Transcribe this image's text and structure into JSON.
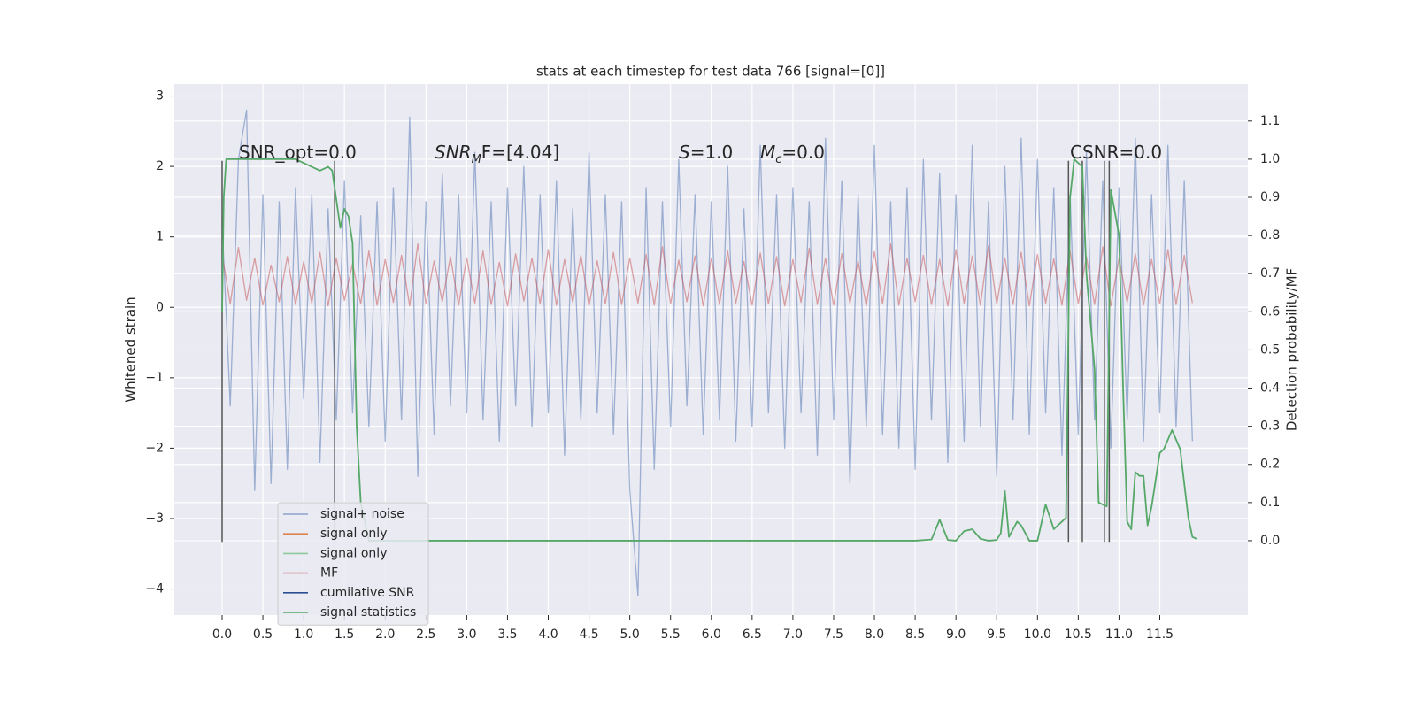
{
  "chart_data": {
    "type": "line",
    "title": "stats at each timestep for test data 766 [signal=[0]]",
    "ylabel": "Whitened strain",
    "y2label": "Detection probability/MF",
    "xlim": [
      -0.586,
      12.58
    ],
    "ylim": [
      -4.37,
      3.17
    ],
    "y2lim": [
      -0.195,
      1.197
    ],
    "xticks": [
      {
        "value": 0,
        "label": "0.0"
      },
      0.5,
      {
        "value": 1,
        "label": "1.0"
      },
      1.5,
      {
        "value": 2,
        "label": "2.0"
      },
      2.5,
      {
        "value": 3,
        "label": "3.0"
      },
      3.5,
      {
        "value": 4,
        "label": "4.0"
      },
      4.5,
      {
        "value": 5,
        "label": "5.0"
      },
      5.5,
      {
        "value": 6,
        "label": "6.0"
      },
      6.5,
      {
        "value": 7,
        "label": "7.0"
      },
      7.5,
      {
        "value": 8,
        "label": "8.0"
      },
      8.5,
      {
        "value": 9,
        "label": "9.0"
      },
      9.5,
      {
        "value": 10,
        "label": "10.0"
      },
      10.5,
      {
        "value": 11,
        "label": "11.0"
      },
      11.5
    ],
    "yticks": [
      3,
      2,
      1,
      0,
      {
        "value": -1,
        "label": "−1"
      },
      {
        "value": -2,
        "label": "−2"
      },
      {
        "value": -3,
        "label": "−3"
      },
      {
        "value": -4,
        "label": "−4"
      }
    ],
    "y2ticks": [
      {
        "value": 0,
        "label": "0.0"
      },
      0.1,
      0.2,
      0.3,
      0.4,
      0.5,
      0.6,
      0.7,
      0.8,
      0.9,
      {
        "value": 1,
        "label": "1.0"
      },
      1.1
    ],
    "grid": true,
    "x": [
      0.0,
      0.1,
      0.2,
      0.3,
      0.4,
      0.5,
      0.6,
      0.7,
      0.8,
      0.9,
      1.0,
      1.1,
      1.2,
      1.3,
      1.4,
      1.5,
      1.6,
      1.7,
      1.8,
      1.9,
      2.0,
      2.1,
      2.2,
      2.3,
      2.4,
      2.5,
      2.6,
      2.7,
      2.8,
      2.9,
      3.0,
      3.1,
      3.2,
      3.3,
      3.4,
      3.5,
      3.6,
      3.7,
      3.8,
      3.9,
      4.0,
      4.1,
      4.2,
      4.3,
      4.4,
      4.5,
      4.6,
      4.7,
      4.8,
      4.9,
      5.0,
      5.1,
      5.2,
      5.3,
      5.4,
      5.5,
      5.6,
      5.7,
      5.8,
      5.9,
      6.0,
      6.1,
      6.2,
      6.3,
      6.4,
      6.5,
      6.6,
      6.7,
      6.8,
      6.9,
      7.0,
      7.1,
      7.2,
      7.3,
      7.4,
      7.5,
      7.6,
      7.7,
      7.8,
      7.9,
      8.0,
      8.1,
      8.2,
      8.3,
      8.4,
      8.5,
      8.6,
      8.7,
      8.8,
      8.9,
      9.0,
      9.1,
      9.2,
      9.3,
      9.4,
      9.5,
      9.6,
      9.7,
      9.8,
      9.9,
      10.0,
      10.1,
      10.2,
      10.3,
      10.4,
      10.5,
      10.6,
      10.7,
      10.8,
      10.9,
      11.0,
      11.1,
      11.2,
      11.3,
      11.4,
      11.5,
      11.6,
      11.7,
      11.8,
      11.9
    ],
    "series": [
      {
        "name": "signal+ noise",
        "color": "#4c72b0",
        "values": [
          1.2,
          -1.4,
          2.1,
          2.8,
          -2.6,
          1.6,
          -2.5,
          1.5,
          -2.3,
          1.7,
          -1.3,
          1.6,
          -2.2,
          1.4,
          -1.6,
          1.8,
          -1.5,
          1.3,
          -1.7,
          1.5,
          -1.9,
          1.7,
          -1.6,
          2.7,
          -2.4,
          1.5,
          -1.8,
          1.9,
          -1.4,
          1.6,
          -1.5,
          2.2,
          -1.6,
          1.5,
          -1.9,
          1.7,
          -1.4,
          2.0,
          -1.7,
          1.6,
          -1.5,
          1.8,
          -2.1,
          1.4,
          -1.6,
          2.2,
          -1.5,
          1.6,
          -1.8,
          1.5,
          -2.6,
          -4.1,
          1.7,
          -2.3,
          1.5,
          -1.7,
          2.1,
          -1.4,
          1.6,
          -1.8,
          1.5,
          -1.6,
          2.0,
          -1.9,
          1.4,
          -1.7,
          2.3,
          -1.5,
          1.6,
          -2.0,
          1.7,
          -1.5,
          1.5,
          -2.1,
          2.4,
          -1.6,
          1.8,
          -2.5,
          1.6,
          -1.7,
          2.3,
          -1.8,
          1.5,
          -2.0,
          1.7,
          -2.3,
          2.1,
          -1.6,
          1.9,
          -2.2,
          1.6,
          -1.9,
          2.3,
          -1.7,
          1.5,
          -2.4,
          2.0,
          -1.6,
          2.4,
          -1.8,
          2.1,
          -1.5,
          1.7,
          -2.1,
          1.6,
          -1.8,
          2.2,
          -1.6,
          1.8,
          -2.0,
          1.7,
          -1.6,
          2.4,
          -1.9,
          1.6,
          -1.5,
          2.3,
          -1.7,
          1.8,
          -1.9
        ]
      },
      {
        "name": "signal only",
        "color": "#dd8452"
      },
      {
        "name": "signal only",
        "color": "#8dc99a"
      },
      {
        "name": "MF",
        "color": "#c44e52",
        "values": [
          0.75,
          0.05,
          0.85,
          0.1,
          0.7,
          0.03,
          0.6,
          0.08,
          0.72,
          0.04,
          0.65,
          0.06,
          0.78,
          0.02,
          0.7,
          0.1,
          0.62,
          0.05,
          0.8,
          0.03,
          0.68,
          0.07,
          0.74,
          0.02,
          0.9,
          0.05,
          0.66,
          0.08,
          0.72,
          0.03,
          0.7,
          0.06,
          0.8,
          0.04,
          0.64,
          0.02,
          0.76,
          0.09,
          0.7,
          0.05,
          0.82,
          0.03,
          0.68,
          0.07,
          0.74,
          0.02,
          0.66,
          0.05,
          0.78,
          0.04,
          0.7,
          0.06,
          0.75,
          0.03,
          0.86,
          0.05,
          0.67,
          0.08,
          0.73,
          0.02,
          0.7,
          0.04,
          0.8,
          0.06,
          0.65,
          0.03,
          0.77,
          0.05,
          0.72,
          0.02,
          0.68,
          0.07,
          0.84,
          0.04,
          0.7,
          0.03,
          0.76,
          0.06,
          0.66,
          0.02,
          0.79,
          0.05,
          0.9,
          0.03,
          0.7,
          0.08,
          0.74,
          0.04,
          0.68,
          0.02,
          0.82,
          0.06,
          0.73,
          0.03,
          0.88,
          0.05,
          0.7,
          0.04,
          0.78,
          0.02,
          0.75,
          0.06,
          0.69,
          0.03,
          0.8,
          0.05,
          0.72,
          0.04,
          0.86,
          0.02,
          0.7,
          0.07,
          0.76,
          0.03,
          0.68,
          0.05,
          0.82,
          0.04,
          0.74,
          0.06
        ]
      },
      {
        "name": "cumilative SNR",
        "color": "#2c4f93"
      },
      {
        "name": "signal statistics",
        "color": "#55a868",
        "axis": "y2",
        "x": [
          0.0,
          0.02,
          0.05,
          0.1,
          0.3,
          0.6,
          0.9,
          1.0,
          1.1,
          1.2,
          1.3,
          1.35,
          1.45,
          1.5,
          1.55,
          1.6,
          1.65,
          1.7,
          1.8,
          3.0,
          5.0,
          7.0,
          8.5,
          8.7,
          8.8,
          8.9,
          9.0,
          9.1,
          9.2,
          9.3,
          9.4,
          9.5,
          9.55,
          9.6,
          9.65,
          9.75,
          9.8,
          9.9,
          10.0,
          10.1,
          10.2,
          10.35,
          10.4,
          10.45,
          10.55,
          10.6,
          10.7,
          10.75,
          10.85,
          10.9,
          11.0,
          11.05,
          11.1,
          11.15,
          11.2,
          11.25,
          11.3,
          11.35,
          11.4,
          11.5,
          11.55,
          11.65,
          11.75,
          11.85,
          11.9,
          11.95
        ],
        "values": [
          0.6,
          0.9,
          1.0,
          1.0,
          1.0,
          1.0,
          1.0,
          0.99,
          0.98,
          0.97,
          0.98,
          0.97,
          0.82,
          0.87,
          0.85,
          0.78,
          0.3,
          0.1,
          0.0,
          0.0,
          0.0,
          0.0,
          0.0,
          0.003,
          0.055,
          0.002,
          0.0,
          0.025,
          0.03,
          0.005,
          0.0,
          0.002,
          0.02,
          0.13,
          0.01,
          0.05,
          0.04,
          0.0,
          0.0,
          0.095,
          0.03,
          0.06,
          0.9,
          1.0,
          0.98,
          0.7,
          0.45,
          0.1,
          0.09,
          0.92,
          0.8,
          0.4,
          0.05,
          0.03,
          0.18,
          0.17,
          0.17,
          0.04,
          0.09,
          0.23,
          0.24,
          0.29,
          0.24,
          0.06,
          0.01,
          0.005
        ]
      }
    ],
    "vlines": {
      "x": [
        0.0,
        1.38,
        10.38,
        10.55,
        10.82,
        10.88
      ],
      "ymin": -3.33,
      "ymax": 2.08,
      "color": "#555555"
    },
    "annotations": [
      {
        "parts": [
          {
            "text": "SNR_opt=0.0"
          }
        ]
      },
      {
        "parts": [
          {
            "text": "SNR",
            "style": "italic"
          },
          {
            "text": "M",
            "style": "sub"
          },
          {
            "text": "F=[4.04]"
          }
        ]
      },
      {
        "parts": [
          {
            "text": "S",
            "style": "italic"
          },
          {
            "text": "=1.0"
          }
        ]
      },
      {
        "parts": [
          {
            "text": "M",
            "style": "italic"
          },
          {
            "text": "c",
            "style": "sub"
          },
          {
            "text": "=0.0"
          }
        ]
      },
      {
        "parts": [
          {
            "text": "CSNR=0.0"
          }
        ]
      }
    ]
  }
}
